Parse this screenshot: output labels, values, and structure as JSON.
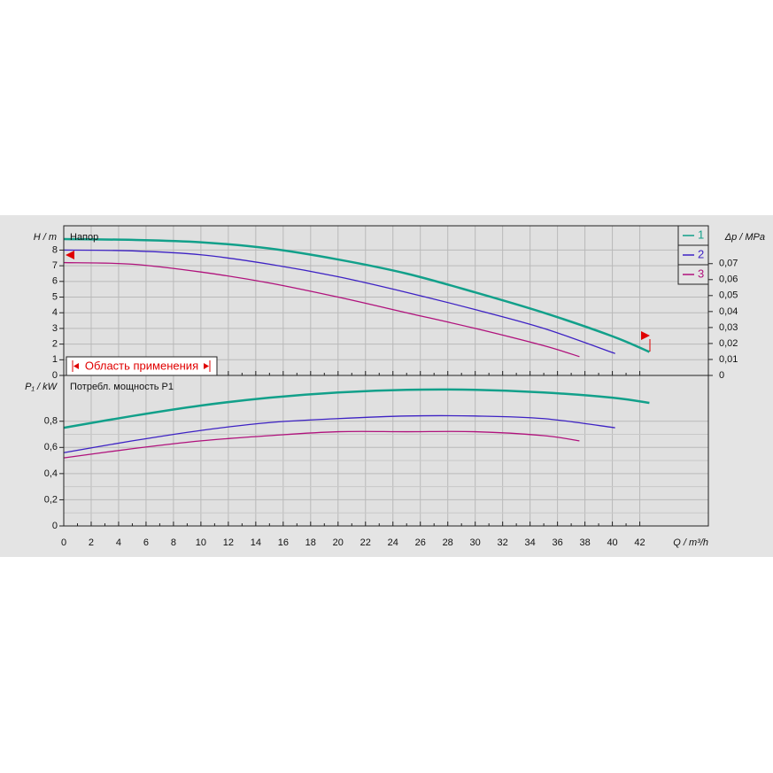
{
  "chart_data": [
    {
      "type": "line",
      "title": "Напор",
      "ylabel": "H / m",
      "y2label": "Δp / MPa",
      "annotation": "Область применения",
      "xlim": [
        0,
        47
      ],
      "xticks": [
        0,
        2,
        4,
        6,
        8,
        10,
        12,
        14,
        16,
        18,
        20,
        22,
        24,
        26,
        28,
        30,
        32,
        34,
        36,
        38,
        40,
        42
      ],
      "ylim": [
        0,
        9.55
      ],
      "yticks": [
        0,
        1,
        2,
        3,
        4,
        5,
        6,
        7,
        8
      ],
      "y2lim": [
        0,
        0.0937
      ],
      "y2ticks": [
        {
          "value": 0,
          "label": "0"
        },
        {
          "value": 0.01,
          "label": "0,01"
        },
        {
          "value": 0.02,
          "label": "0,02"
        },
        {
          "value": 0.03,
          "label": "0,03"
        },
        {
          "value": 0.04,
          "label": "0,04"
        },
        {
          "value": 0.05,
          "label": "0,05"
        },
        {
          "value": 0.06,
          "label": "0,06"
        },
        {
          "value": 0.07,
          "label": "0,07"
        }
      ],
      "grid": true,
      "series": [
        {
          "name": "1",
          "color": "#12a08a",
          "x": [
            0,
            5,
            10,
            15,
            20,
            25,
            30,
            35,
            40,
            42.7
          ],
          "values": [
            8.7,
            8.65,
            8.5,
            8.1,
            7.4,
            6.5,
            5.3,
            4.0,
            2.5,
            1.5
          ]
        },
        {
          "name": "2",
          "color": "#3d22c4",
          "x": [
            0,
            5,
            10,
            15,
            20,
            25,
            30,
            35,
            40.2
          ],
          "values": [
            8.0,
            7.95,
            7.7,
            7.1,
            6.3,
            5.3,
            4.2,
            3.0,
            1.4
          ]
        },
        {
          "name": "3",
          "color": "#b0127c",
          "x": [
            0,
            5,
            10,
            15,
            20,
            25,
            30,
            35,
            37.6
          ],
          "values": [
            7.2,
            7.1,
            6.6,
            5.9,
            5.0,
            4.0,
            3.0,
            1.9,
            1.2
          ]
        }
      ]
    },
    {
      "type": "line",
      "title": "Потребл. мощность P1",
      "ylabel": "P₁ / kW",
      "xlabel": "Q / m³/h",
      "xlim": [
        0,
        47
      ],
      "xticks": [
        0,
        2,
        4,
        6,
        8,
        10,
        12,
        14,
        16,
        18,
        20,
        22,
        24,
        26,
        28,
        30,
        32,
        34,
        36,
        38,
        40,
        42
      ],
      "ylim": [
        0,
        1.15
      ],
      "yticks": [
        0,
        {
          "value": 0.2,
          "label": "0,2"
        },
        {
          "value": 0.4,
          "label": "0,4"
        },
        {
          "value": 0.6,
          "label": "0,6"
        },
        {
          "value": 0.8,
          "label": "0,8"
        }
      ],
      "grid": true,
      "series": [
        {
          "color": "#12a08a",
          "x": [
            0,
            5,
            10,
            15,
            20,
            25,
            30,
            35,
            40,
            42.7
          ],
          "values": [
            0.75,
            0.84,
            0.92,
            0.98,
            1.02,
            1.04,
            1.04,
            1.02,
            0.98,
            0.94
          ]
        },
        {
          "color": "#3d22c4",
          "x": [
            0,
            5,
            10,
            15,
            20,
            25,
            30,
            35,
            40.2
          ],
          "values": [
            0.56,
            0.65,
            0.73,
            0.79,
            0.82,
            0.84,
            0.84,
            0.82,
            0.75
          ]
        },
        {
          "color": "#b0127c",
          "x": [
            0,
            5,
            10,
            15,
            20,
            25,
            30,
            35,
            37.6
          ],
          "values": [
            0.52,
            0.59,
            0.65,
            0.69,
            0.72,
            0.72,
            0.72,
            0.69,
            0.65
          ]
        }
      ]
    }
  ]
}
